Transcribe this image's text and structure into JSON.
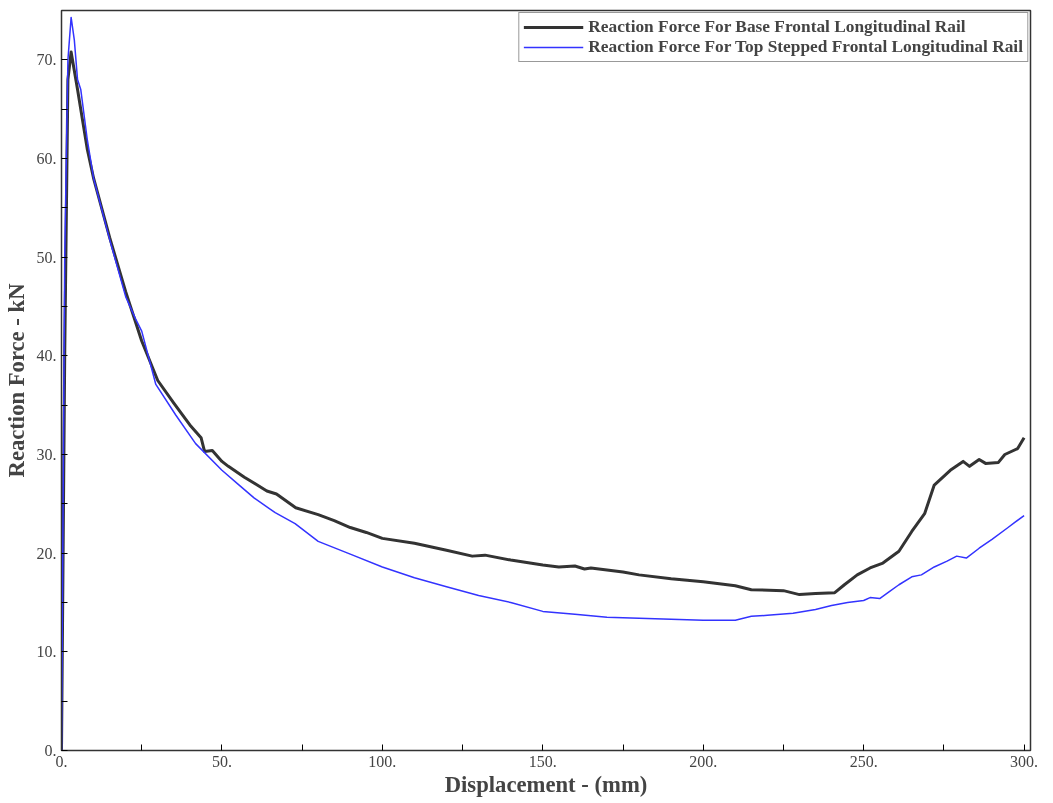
{
  "chart_data": {
    "type": "line",
    "xlabel": "Displacement - (mm)",
    "ylabel": "Reaction Force - kN",
    "xlim": [
      0,
      302
    ],
    "ylim": [
      0,
      75
    ],
    "xticks": [
      {
        "value": 0,
        "label": "0."
      },
      {
        "value": 25,
        "label": null
      },
      {
        "value": 50,
        "label": "50."
      },
      {
        "value": 75,
        "label": null
      },
      {
        "value": 100,
        "label": "100."
      },
      {
        "value": 125,
        "label": null
      },
      {
        "value": 150,
        "label": "150."
      },
      {
        "value": 175,
        "label": null
      },
      {
        "value": 200,
        "label": "200."
      },
      {
        "value": 225,
        "label": null
      },
      {
        "value": 250,
        "label": "250."
      },
      {
        "value": 275,
        "label": null
      },
      {
        "value": 300,
        "label": "300."
      }
    ],
    "yticks": [
      {
        "value": 0,
        "label": "0."
      },
      {
        "value": 5,
        "label": null
      },
      {
        "value": 10,
        "label": "10."
      },
      {
        "value": 15,
        "label": null
      },
      {
        "value": 20,
        "label": "20."
      },
      {
        "value": 25,
        "label": null
      },
      {
        "value": 30,
        "label": "30."
      },
      {
        "value": 35,
        "label": null
      },
      {
        "value": 40,
        "label": "40."
      },
      {
        "value": 45,
        "label": null
      },
      {
        "value": 50,
        "label": "50."
      },
      {
        "value": 55,
        "label": null
      },
      {
        "value": 60,
        "label": "60."
      },
      {
        "value": 65,
        "label": null
      },
      {
        "value": 70,
        "label": "70."
      }
    ],
    "grid": false,
    "legend": "top right",
    "marker": "none",
    "line_style": "solid",
    "series": [
      {
        "name": "Reaction Force For Base Frontal Longitudinal Rail",
        "color": "#333333",
        "x": [
          0,
          1,
          2,
          3,
          5,
          8,
          10,
          15,
          20,
          25,
          30,
          35,
          40,
          43.5,
          44.6,
          47,
          50,
          52,
          57,
          61,
          64,
          67,
          73,
          80,
          85,
          90,
          95,
          100,
          110,
          120,
          128,
          132,
          140,
          150,
          155,
          160,
          163,
          165,
          175,
          180,
          190,
          200,
          210,
          215,
          225,
          230,
          235,
          241,
          244,
          248,
          252,
          256,
          261,
          265,
          269,
          272,
          277,
          281,
          283,
          286,
          288,
          292,
          294,
          298,
          300
        ],
        "values": [
          0,
          40,
          68,
          70.8,
          67,
          61,
          58,
          52,
          46.5,
          41.5,
          37.5,
          35.2,
          33,
          31.7,
          30.3,
          30.4,
          29.3,
          28.8,
          27.7,
          26.9,
          26.3,
          26,
          24.6,
          23.9,
          23.3,
          22.6,
          22.1,
          21.5,
          21,
          20.3,
          19.7,
          19.8,
          19.3,
          18.8,
          18.6,
          18.7,
          18.4,
          18.5,
          18.1,
          17.8,
          17.4,
          17.1,
          16.7,
          16.3,
          16.2,
          15.8,
          15.9,
          16.0,
          16.8,
          17.8,
          18.5,
          19,
          20.2,
          22.2,
          24,
          26.9,
          28.4,
          29.3,
          28.8,
          29.5,
          29.1,
          29.2,
          30,
          30.6,
          31.7
        ]
      },
      {
        "name": "Reaction Force For Top Stepped Frontal Longitudinal Rail",
        "color": "#3333ff",
        "x": [
          0,
          1,
          2,
          3,
          4,
          5,
          6,
          8,
          10,
          15,
          20,
          23,
          25,
          29.4,
          35.6,
          41.8,
          50,
          55,
          60,
          66.6,
          72.8,
          80,
          90,
          100,
          110,
          120,
          130,
          140,
          150,
          160,
          170,
          180,
          190,
          200,
          210,
          215,
          220,
          228,
          235,
          240,
          245,
          250,
          252,
          255,
          258,
          261,
          265,
          268,
          272,
          276,
          279,
          282,
          286,
          290,
          295,
          297,
          300
        ],
        "values": [
          0,
          50,
          70,
          74.3,
          72,
          68,
          67,
          62,
          58,
          51.8,
          46,
          43.8,
          42.5,
          37.1,
          34,
          31.1,
          28.4,
          27,
          25.6,
          24.1,
          23,
          21.2,
          19.9,
          18.6,
          17.5,
          16.6,
          15.7,
          15,
          14.1,
          13.8,
          13.5,
          13.4,
          13.3,
          13.2,
          13.2,
          13.6,
          13.7,
          13.9,
          14.3,
          14.7,
          15.0,
          15.2,
          15.5,
          15.4,
          16.1,
          16.8,
          17.6,
          17.8,
          18.6,
          19.2,
          19.7,
          19.5,
          20.5,
          21.4,
          22.6,
          23.1,
          23.8
        ]
      }
    ]
  }
}
